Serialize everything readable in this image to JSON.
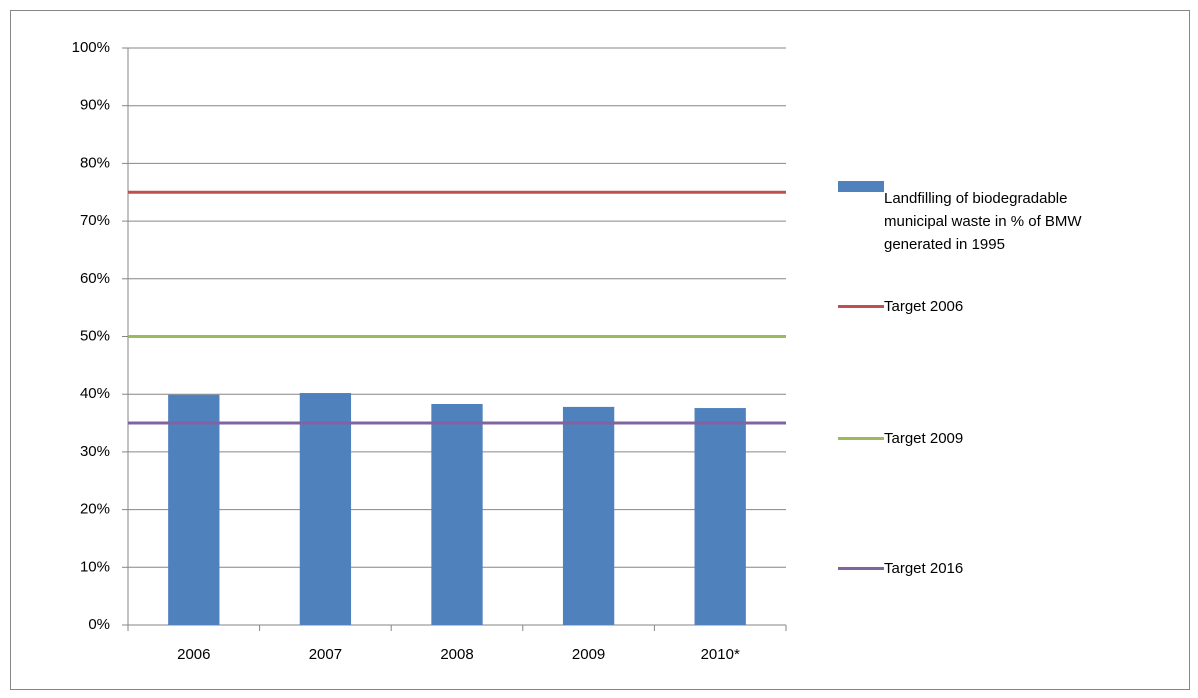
{
  "chart_data": {
    "type": "bar",
    "categories": [
      "2006",
      "2007",
      "2008",
      "2009",
      "2010*"
    ],
    "series": [
      {
        "name": "Landfilling of biodegradable municipal waste in % of BMW generated in 1995",
        "type": "bar",
        "color": "#4f81bd",
        "values": [
          39.9,
          40.2,
          38.3,
          37.8,
          37.6
        ]
      },
      {
        "name": "Target 2006",
        "type": "line",
        "color": "#c0504d",
        "values": [
          75,
          75,
          75,
          75,
          75
        ]
      },
      {
        "name": "Target 2009",
        "type": "line",
        "color": "#9bbb59",
        "values": [
          50,
          50,
          50,
          50,
          50
        ]
      },
      {
        "name": "Target 2016",
        "type": "line",
        "color": "#8064a2",
        "values": [
          35,
          35,
          35,
          35,
          35
        ]
      }
    ],
    "ylim": [
      0,
      100
    ],
    "yticks": [
      {
        "value": 0,
        "label": "0%"
      },
      {
        "value": 10,
        "label": "10%"
      },
      {
        "value": 20,
        "label": "20%"
      },
      {
        "value": 30,
        "label": "30%"
      },
      {
        "value": 40,
        "label": "40%"
      },
      {
        "value": 50,
        "label": "50%"
      },
      {
        "value": 60,
        "label": "60%"
      },
      {
        "value": 70,
        "label": "70%"
      },
      {
        "value": 80,
        "label": "80%"
      },
      {
        "value": 90,
        "label": "90%"
      },
      {
        "value": 100,
        "label": "100%"
      }
    ],
    "grid": true
  }
}
